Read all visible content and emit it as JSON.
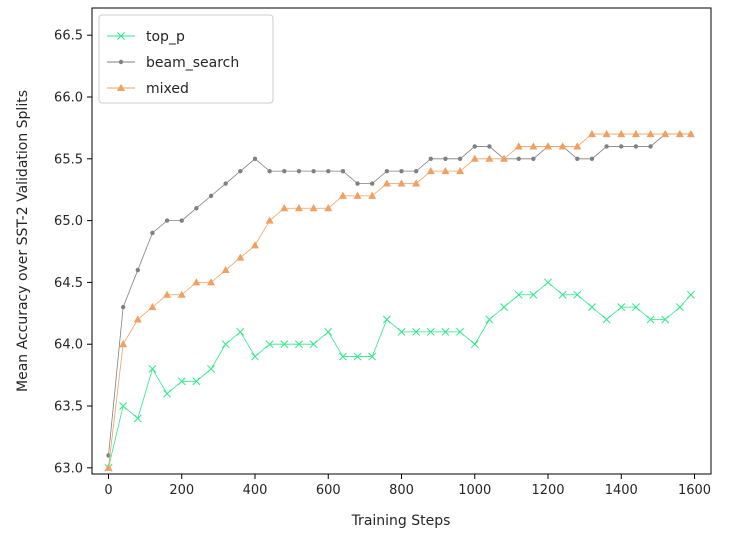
{
  "chart_data": {
    "type": "line",
    "title": "",
    "xlabel": "Training Steps",
    "ylabel": "Mean Accuracy over SST-2 Validation Splits",
    "xlim": [
      -45,
      1645
    ],
    "ylim": [
      62.95,
      66.72
    ],
    "xticks": [
      0,
      200,
      400,
      600,
      800,
      1000,
      1200,
      1400,
      1600
    ],
    "yticks": [
      63.0,
      63.5,
      64.0,
      64.5,
      65.0,
      65.5,
      66.0,
      66.5
    ],
    "xtick_labels": [
      "0",
      "200",
      "400",
      "600",
      "800",
      "1000",
      "1200",
      "1400",
      "1600"
    ],
    "ytick_labels": [
      "63.0",
      "63.5",
      "64.0",
      "64.5",
      "65.0",
      "65.5",
      "66.0",
      "66.5"
    ],
    "grid": false,
    "legend_position": "top-left",
    "series": [
      {
        "name": "top_p",
        "color": "#2ee88a",
        "marker": "x",
        "x": [
          0,
          40,
          80,
          120,
          160,
          200,
          240,
          280,
          320,
          360,
          400,
          440,
          480,
          520,
          560,
          600,
          640,
          680,
          720,
          760,
          800,
          840,
          880,
          920,
          960,
          1000,
          1040,
          1080,
          1120,
          1160,
          1200,
          1240,
          1280,
          1320,
          1360,
          1400,
          1440,
          1480,
          1520,
          1560,
          1590
        ],
        "y": [
          63.0,
          63.5,
          63.4,
          63.8,
          63.6,
          63.7,
          63.7,
          63.8,
          64.0,
          64.1,
          63.9,
          64.0,
          64.0,
          64.0,
          64.0,
          64.1,
          63.9,
          63.9,
          63.9,
          64.2,
          64.1,
          64.1,
          64.1,
          64.1,
          64.1,
          64.0,
          64.2,
          64.3,
          64.4,
          64.4,
          64.5,
          64.4,
          64.4,
          64.3,
          64.2,
          64.3,
          64.3,
          64.2,
          64.2,
          64.3,
          64.4
        ]
      },
      {
        "name": "beam_search",
        "color": "#808080",
        "marker": "o",
        "x": [
          0,
          40,
          80,
          120,
          160,
          200,
          240,
          280,
          320,
          360,
          400,
          440,
          480,
          520,
          560,
          600,
          640,
          680,
          720,
          760,
          800,
          840,
          880,
          920,
          960,
          1000,
          1040,
          1080,
          1120,
          1160,
          1200,
          1240,
          1280,
          1320,
          1360,
          1400,
          1440,
          1480,
          1520,
          1560,
          1590
        ],
        "y": [
          63.1,
          64.3,
          64.6,
          64.9,
          65.0,
          65.0,
          65.1,
          65.2,
          65.3,
          65.4,
          65.5,
          65.4,
          65.4,
          65.4,
          65.4,
          65.4,
          65.4,
          65.3,
          65.3,
          65.4,
          65.4,
          65.4,
          65.5,
          65.5,
          65.5,
          65.6,
          65.6,
          65.5,
          65.5,
          65.5,
          65.6,
          65.6,
          65.5,
          65.5,
          65.6,
          65.6,
          65.6,
          65.6,
          65.7,
          65.7,
          65.7
        ]
      },
      {
        "name": "mixed",
        "color": "#f0a060",
        "marker": "^",
        "x": [
          0,
          40,
          80,
          120,
          160,
          200,
          240,
          280,
          320,
          360,
          400,
          440,
          480,
          520,
          560,
          600,
          640,
          680,
          720,
          760,
          800,
          840,
          880,
          920,
          960,
          1000,
          1040,
          1080,
          1120,
          1160,
          1200,
          1240,
          1280,
          1320,
          1360,
          1400,
          1440,
          1480,
          1520,
          1560,
          1590
        ],
        "y": [
          63.0,
          64.0,
          64.2,
          64.3,
          64.4,
          64.4,
          64.5,
          64.5,
          64.6,
          64.7,
          64.8,
          65.0,
          65.1,
          65.1,
          65.1,
          65.1,
          65.2,
          65.2,
          65.2,
          65.3,
          65.3,
          65.3,
          65.4,
          65.4,
          65.4,
          65.5,
          65.5,
          65.5,
          65.6,
          65.6,
          65.6,
          65.6,
          65.6,
          65.7,
          65.7,
          65.7,
          65.7,
          65.7,
          65.7,
          65.7,
          65.7
        ]
      }
    ]
  }
}
